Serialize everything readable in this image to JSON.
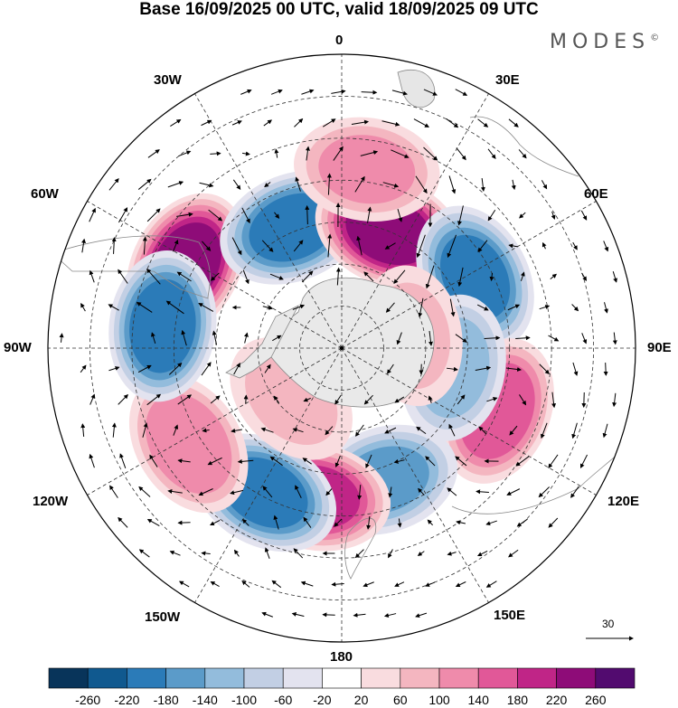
{
  "title": "Base 16/09/2025 00 UTC, valid 18/09/2025 09 UTC",
  "logo": {
    "text": "MODES",
    "mark": "©"
  },
  "longitude_labels": {
    "n0": "0",
    "e30": "30E",
    "e60": "60E",
    "e90": "90E",
    "e120": "120E",
    "e150": "150E",
    "s180": "180",
    "w150": "150W",
    "w120": "120W",
    "w90": "90W",
    "w60": "60W",
    "w30": "30W"
  },
  "vector_scale": {
    "label": "30"
  },
  "colorbar": {
    "colors": [
      "#08345a",
      "#10598f",
      "#2b7bb8",
      "#5b9bc9",
      "#93bcdc",
      "#c2cfe4",
      "#e3e3ef",
      "#ffffff",
      "#f9dcdf",
      "#f4b6c0",
      "#ef8bab",
      "#e15898",
      "#c02587",
      "#8e0c78",
      "#520b6f"
    ],
    "labels": [
      "-260",
      "-220",
      "-180",
      "-140",
      "-100",
      "-60",
      "-20",
      "20",
      "60",
      "100",
      "140",
      "180",
      "220",
      "260"
    ]
  },
  "anomaly_centers": [
    {
      "name": "ridge-60w",
      "lon": -62,
      "colat": 42,
      "value": 250
    },
    {
      "name": "trough-25w",
      "lon": -22,
      "colat": 31,
      "value": -200
    },
    {
      "name": "ridge-25e",
      "lon": 22,
      "colat": 30,
      "value": 245
    },
    {
      "name": "trough-60e",
      "lon": 62,
      "colat": 36,
      "value": -195
    },
    {
      "name": "ridge-110e",
      "lon": 112,
      "colat": 40,
      "value": 175
    },
    {
      "name": "trough-115e",
      "lon": 100,
      "colat": 27,
      "value": -120
    },
    {
      "name": "trough-165e",
      "lon": 162,
      "colat": 33,
      "value": -150
    },
    {
      "name": "ridge-170w",
      "lon": -170,
      "colat": 36,
      "value": 195
    },
    {
      "name": "trough-150w",
      "lon": -152,
      "colat": 39,
      "value": -200
    },
    {
      "name": "ridge-120w",
      "lon": -122,
      "colat": 43,
      "value": 140
    },
    {
      "name": "trough-85w",
      "lon": -83,
      "colat": 43,
      "value": -210
    },
    {
      "name": "ridge-140w",
      "lon": -135,
      "colat": 17,
      "value": 70
    },
    {
      "name": "ridge-80e",
      "lon": 80,
      "colat": 17,
      "value": 70
    },
    {
      "name": "ridge-0",
      "lon": 8,
      "colat": 43,
      "value": 110
    }
  ]
}
